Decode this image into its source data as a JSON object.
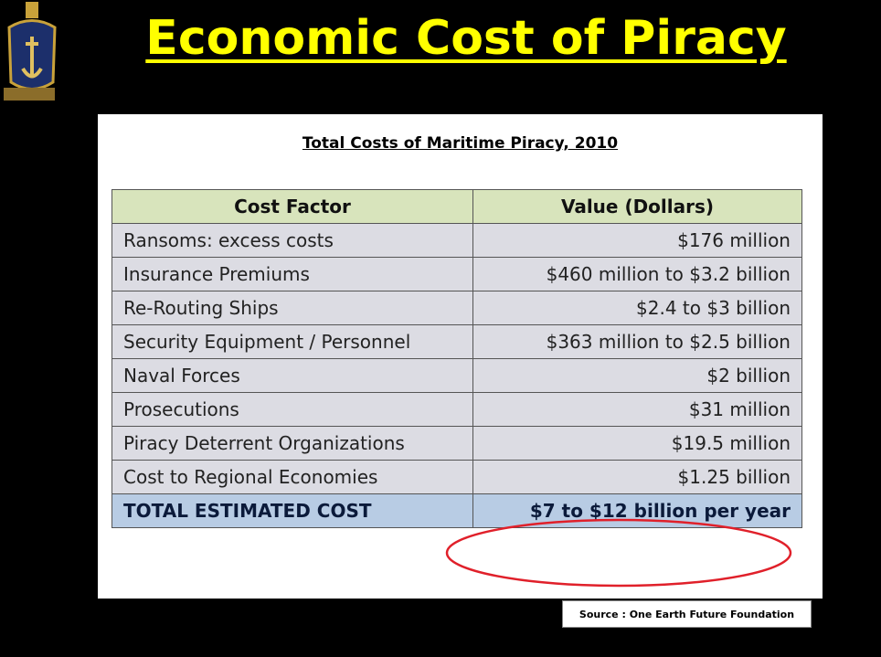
{
  "header": {
    "title": "Economic Cost of Piracy"
  },
  "table": {
    "caption": "Total Costs of Maritime Piracy, 2010",
    "columns": [
      "Cost Factor",
      "Value (Dollars)"
    ],
    "rows": [
      [
        "Ransoms: excess costs",
        "$176 million"
      ],
      [
        "Insurance Premiums",
        "$460 million to $3.2 billion"
      ],
      [
        "Re-Routing Ships",
        "$2.4 to $3 billion"
      ],
      [
        "Security Equipment / Personnel",
        "$363 million to $2.5 billion"
      ],
      [
        "Naval Forces",
        "$2 billion"
      ],
      [
        "Prosecutions",
        "$31 million"
      ],
      [
        "Piracy Deterrent Organizations",
        "$19.5 million"
      ],
      [
        "Cost to Regional Economies",
        "$1.25 billion"
      ]
    ],
    "total": [
      "TOTAL ESTIMATED COST",
      "$7 to $12 billion per year"
    ]
  },
  "source": "Source : One Earth Future Foundation"
}
